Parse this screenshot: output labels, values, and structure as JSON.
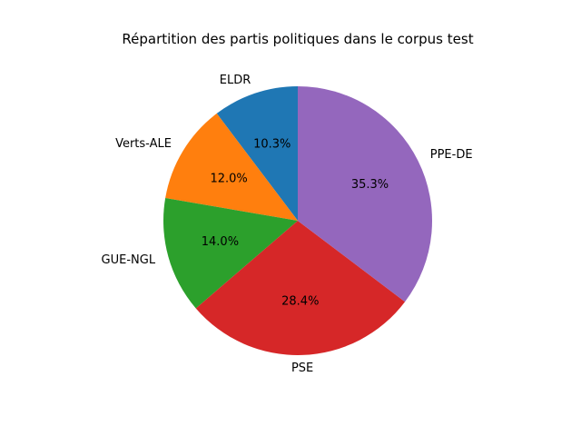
{
  "chart_data": {
    "type": "pie",
    "title": "Répartition des partis politiques dans le corpus test",
    "slices": [
      {
        "label": "ELDR",
        "value": 10.3,
        "pct_label": "10.3%",
        "color": "#1f77b4"
      },
      {
        "label": "Verts-ALE",
        "value": 12.0,
        "pct_label": "12.0%",
        "color": "#ff7f0e"
      },
      {
        "label": "GUE-NGL",
        "value": 14.0,
        "pct_label": "14.0%",
        "color": "#2ca02c"
      },
      {
        "label": "PSE",
        "value": 28.4,
        "pct_label": "28.4%",
        "color": "#d62728"
      },
      {
        "label": "PPE-DE",
        "value": 35.3,
        "pct_label": "35.3%",
        "color": "#9467bd"
      }
    ],
    "start_angle": 90,
    "direction": "counterclockwise",
    "legend": "none"
  }
}
